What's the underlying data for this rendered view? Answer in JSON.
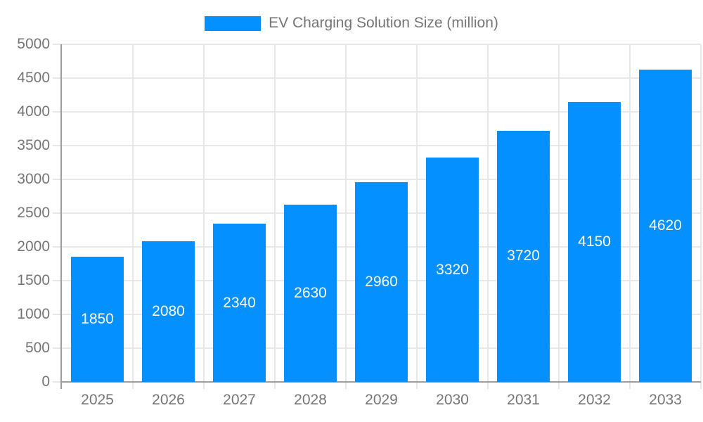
{
  "legend": {
    "label": "EV Charging Solution Size (million)",
    "swatch_color": "#0590ff"
  },
  "chart_data": {
    "type": "bar",
    "title": "",
    "categories": [
      "2025",
      "2026",
      "2027",
      "2028",
      "2029",
      "2030",
      "2031",
      "2032",
      "2033"
    ],
    "series": [
      {
        "name": "EV Charging Solution Size (million)",
        "values": [
          1850,
          2080,
          2340,
          2630,
          2960,
          3320,
          3720,
          4150,
          4620
        ],
        "color": "#0590ff"
      }
    ],
    "bar_value_labels": [
      "1850",
      "2080",
      "2340",
      "2630",
      "2960",
      "3320",
      "3720",
      "4150",
      "4620"
    ],
    "xlabel": "",
    "ylabel": "",
    "ylim": [
      0,
      5000
    ],
    "ytick_step": 500,
    "ytick_labels": [
      "0",
      "500",
      "1000",
      "1500",
      "2000",
      "2500",
      "3000",
      "3500",
      "4000",
      "4500",
      "5000"
    ],
    "grid": true,
    "legend_position": "top",
    "colors": {
      "bar": "#0590ff",
      "bar_label": "#ffffff",
      "axis_text": "#757575",
      "gridline": "#e7e7e7",
      "axis_line": "#9d9d9d"
    }
  }
}
